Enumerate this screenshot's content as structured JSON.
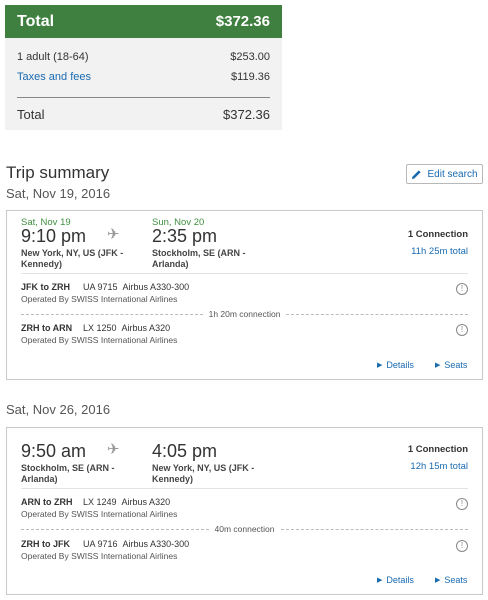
{
  "price_summary": {
    "header_label": "Total",
    "header_value": "$372.36",
    "rows": [
      {
        "label": "1 adult (18-64)",
        "value": "$253.00"
      },
      {
        "label": "Taxes and fees",
        "value": "$119.36"
      }
    ],
    "total_label": "Total",
    "total_value": "$372.36"
  },
  "trip": {
    "title": "Trip summary",
    "edit_label": "Edit search"
  },
  "flights": [
    {
      "section_date": "Sat, Nov 19, 2016",
      "depart_date": "Sat, Nov 19",
      "depart_time": "9:10 pm",
      "depart_city_1": "New York, NY, US (JFK -",
      "depart_city_2": "Kennedy)",
      "arrive_date": "Sun, Nov 20",
      "arrive_time": "2:35 pm",
      "arrive_city_1": "Stockholm, SE (ARN -",
      "arrive_city_2": "Arlanda)",
      "connections": "1 Connection",
      "duration": "11h 25m total",
      "segments": [
        {
          "route": "JFK to ZRH",
          "flight": "UA 9715",
          "aircraft": "Airbus A330-300",
          "operator": "Operated By SWISS International Airlines"
        },
        {
          "route": "ZRH to ARN",
          "flight": "LX 1250",
          "aircraft": "Airbus A320",
          "operator": "Operated By SWISS International Airlines"
        }
      ],
      "layover": "1h 20m connection",
      "details_label": "Details",
      "seats_label": "Seats"
    },
    {
      "section_date": "Sat, Nov 26, 2016",
      "depart_time": "9:50 am",
      "depart_city_1": "Stockholm, SE (ARN -",
      "depart_city_2": "Arlanda)",
      "arrive_time": "4:05 pm",
      "arrive_city_1": "New York, NY, US (JFK -",
      "arrive_city_2": "Kennedy)",
      "connections": "1 Connection",
      "duration": "12h 15m total",
      "segments": [
        {
          "route": "ARN to ZRH",
          "flight": "LX 1249",
          "aircraft": "Airbus A320",
          "operator": "Operated By SWISS International Airlines"
        },
        {
          "route": "ZRH to JFK",
          "flight": "UA 9716",
          "aircraft": "Airbus A330-300",
          "operator": "Operated By SWISS International Airlines"
        }
      ],
      "layover": "40m connection",
      "details_label": "Details",
      "seats_label": "Seats"
    }
  ],
  "icons": {
    "plane": "airplane-icon",
    "info": "info-icon",
    "edit": "pencil-icon",
    "expand": "triangle-right-icon"
  },
  "colors": {
    "header_green": "#3f7f3f",
    "date_green": "#3f8f3f",
    "link_blue": "#1a6ab0"
  }
}
